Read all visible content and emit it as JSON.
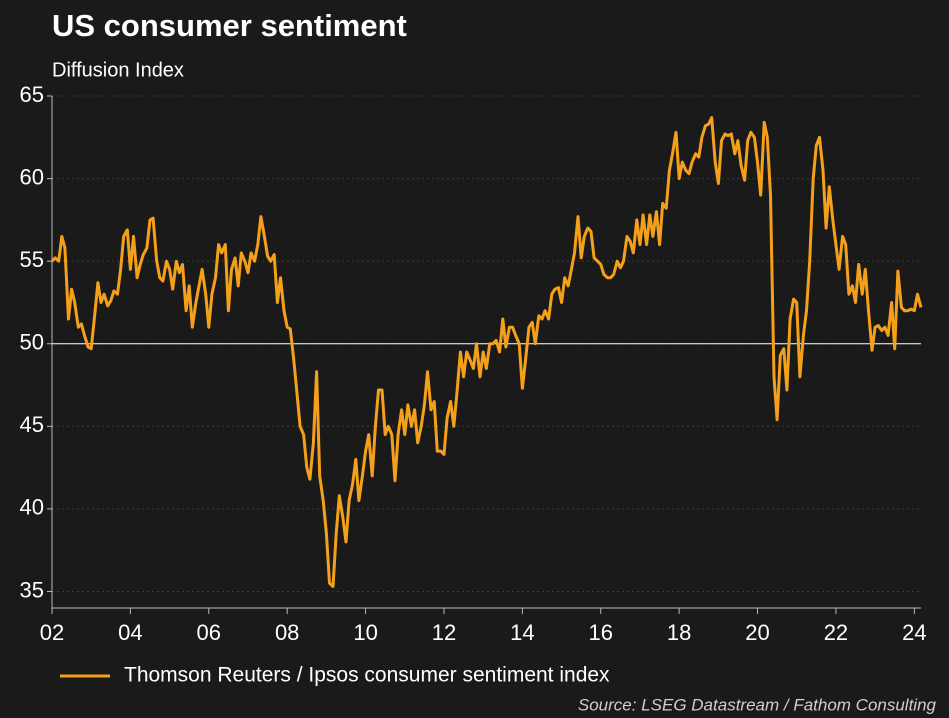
{
  "chart_data": {
    "type": "line",
    "title": "US consumer sentiment",
    "subtitle": "Diffusion Index",
    "source": "Source: LSEG Datastream / Fathom Consulting",
    "xlim": [
      2002,
      2024.17
    ],
    "xticks": [
      {
        "value": 2002,
        "label": "02"
      },
      {
        "value": 2004,
        "label": "04"
      },
      {
        "value": 2006,
        "label": "06"
      },
      {
        "value": 2008,
        "label": "08"
      },
      {
        "value": 2010,
        "label": "10"
      },
      {
        "value": 2012,
        "label": "12"
      },
      {
        "value": 2014,
        "label": "14"
      },
      {
        "value": 2016,
        "label": "16"
      },
      {
        "value": 2018,
        "label": "18"
      },
      {
        "value": 2020,
        "label": "20"
      },
      {
        "value": 2022,
        "label": "22"
      },
      {
        "value": 2024,
        "label": "24"
      }
    ],
    "ylim": [
      34,
      65
    ],
    "yticks": [
      35,
      40,
      45,
      50,
      55,
      60,
      65
    ],
    "grid": true,
    "hline": 50,
    "legend": "bottom-left",
    "x": [
      2002.0,
      2002.08,
      2002.17,
      2002.25,
      2002.33,
      2002.42,
      2002.5,
      2002.58,
      2002.67,
      2002.75,
      2002.83,
      2002.92,
      2003.0,
      2003.08,
      2003.17,
      2003.25,
      2003.33,
      2003.42,
      2003.5,
      2003.58,
      2003.67,
      2003.75,
      2003.83,
      2003.92,
      2004.0,
      2004.08,
      2004.17,
      2004.25,
      2004.33,
      2004.42,
      2004.5,
      2004.58,
      2004.67,
      2004.75,
      2004.83,
      2004.92,
      2005.0,
      2005.08,
      2005.17,
      2005.25,
      2005.33,
      2005.42,
      2005.5,
      2005.58,
      2005.67,
      2005.75,
      2005.83,
      2005.92,
      2006.0,
      2006.08,
      2006.17,
      2006.25,
      2006.33,
      2006.42,
      2006.5,
      2006.58,
      2006.67,
      2006.75,
      2006.83,
      2006.92,
      2007.0,
      2007.08,
      2007.17,
      2007.25,
      2007.33,
      2007.42,
      2007.5,
      2007.58,
      2007.67,
      2007.75,
      2007.83,
      2007.92,
      2008.0,
      2008.08,
      2008.17,
      2008.25,
      2008.33,
      2008.42,
      2008.5,
      2008.58,
      2008.67,
      2008.75,
      2008.83,
      2008.92,
      2009.0,
      2009.08,
      2009.17,
      2009.25,
      2009.33,
      2009.42,
      2009.5,
      2009.58,
      2009.67,
      2009.75,
      2009.83,
      2009.92,
      2010.0,
      2010.08,
      2010.17,
      2010.25,
      2010.33,
      2010.42,
      2010.5,
      2010.58,
      2010.67,
      2010.75,
      2010.83,
      2010.92,
      2011.0,
      2011.08,
      2011.17,
      2011.25,
      2011.33,
      2011.42,
      2011.5,
      2011.58,
      2011.67,
      2011.75,
      2011.83,
      2011.92,
      2012.0,
      2012.08,
      2012.17,
      2012.25,
      2012.33,
      2012.42,
      2012.5,
      2012.58,
      2012.67,
      2012.75,
      2012.83,
      2012.92,
      2013.0,
      2013.08,
      2013.17,
      2013.25,
      2013.33,
      2013.42,
      2013.5,
      2013.58,
      2013.67,
      2013.75,
      2013.83,
      2013.92,
      2014.0,
      2014.08,
      2014.17,
      2014.25,
      2014.33,
      2014.42,
      2014.5,
      2014.58,
      2014.67,
      2014.75,
      2014.83,
      2014.92,
      2015.0,
      2015.08,
      2015.17,
      2015.25,
      2015.33,
      2015.42,
      2015.5,
      2015.58,
      2015.67,
      2015.75,
      2015.83,
      2015.92,
      2016.0,
      2016.08,
      2016.17,
      2016.25,
      2016.33,
      2016.42,
      2016.5,
      2016.58,
      2016.67,
      2016.75,
      2016.83,
      2016.92,
      2017.0,
      2017.08,
      2017.17,
      2017.25,
      2017.33,
      2017.42,
      2017.5,
      2017.58,
      2017.67,
      2017.75,
      2017.83,
      2017.92,
      2018.0,
      2018.08,
      2018.17,
      2018.25,
      2018.33,
      2018.42,
      2018.5,
      2018.58,
      2018.67,
      2018.75,
      2018.83,
      2018.92,
      2019.0,
      2019.08,
      2019.17,
      2019.25,
      2019.33,
      2019.42,
      2019.5,
      2019.58,
      2019.67,
      2019.75,
      2019.83,
      2019.92,
      2020.0,
      2020.08,
      2020.17,
      2020.25,
      2020.33,
      2020.42,
      2020.5,
      2020.58,
      2020.67,
      2020.75,
      2020.83,
      2020.92,
      2021.0,
      2021.08,
      2021.17,
      2021.25,
      2021.33,
      2021.42,
      2021.5,
      2021.58,
      2021.67,
      2021.75,
      2021.83,
      2021.92,
      2022.0,
      2022.08,
      2022.17,
      2022.25,
      2022.33,
      2022.42,
      2022.5,
      2022.58,
      2022.67,
      2022.75,
      2022.83,
      2022.92,
      2023.0,
      2023.08,
      2023.17,
      2023.25,
      2023.33,
      2023.42,
      2023.5,
      2023.58,
      2023.67,
      2023.75,
      2023.83,
      2023.92,
      2024.0,
      2024.08,
      2024.17
    ],
    "series": [
      {
        "name": "Thomson Reuters / Ipsos consumer sentiment index",
        "color": "#f5a01a",
        "values": [
          55,
          55.2,
          55,
          56.5,
          55.8,
          51.5,
          53.3,
          52.5,
          51,
          51.2,
          50.5,
          49.8,
          49.7,
          51.5,
          53.7,
          52.5,
          53,
          52.3,
          52.6,
          53.2,
          53,
          54.5,
          56.5,
          56.9,
          54.5,
          56.5,
          54,
          54.8,
          55.4,
          55.8,
          57.5,
          57.6,
          55,
          54,
          53.8,
          55,
          54.5,
          53.3,
          55,
          54.3,
          54.8,
          52,
          53.5,
          51,
          52.5,
          53.5,
          54.5,
          53,
          51,
          53,
          54,
          56,
          55.5,
          56,
          52,
          54.5,
          55.2,
          53.5,
          55.5,
          55,
          54.3,
          55.5,
          55,
          56,
          57.7,
          56.5,
          55.3,
          55,
          55.4,
          52.5,
          54,
          52,
          51,
          50.9,
          49,
          47,
          45,
          44.5,
          42.5,
          41.8,
          44,
          48.3,
          42,
          40.5,
          38.5,
          35.5,
          35.3,
          38.5,
          40.8,
          39.5,
          38,
          40.5,
          41.5,
          43,
          40.5,
          42,
          43.5,
          44.5,
          42,
          45,
          47.2,
          47.2,
          44.5,
          45,
          44.5,
          41.7,
          44.5,
          46,
          44.5,
          46.3,
          45,
          46,
          44,
          45,
          46.3,
          48.3,
          46,
          46.5,
          43.5,
          43.5,
          43.3,
          45.5,
          46.5,
          45,
          47,
          49.5,
          48,
          49.5,
          49,
          48.5,
          50,
          48,
          49.5,
          48.5,
          50,
          50,
          50.2,
          49.5,
          51.5,
          49.8,
          51,
          51,
          50.5,
          50,
          47.3,
          49,
          51,
          51.3,
          50,
          51.7,
          51.5,
          52,
          51.5,
          53,
          53.3,
          53.4,
          52.5,
          54,
          53.5,
          54.5,
          55.5,
          57.7,
          55.2,
          56.5,
          57,
          56.8,
          55.2,
          55,
          54.8,
          54.2,
          54,
          54,
          54.2,
          55,
          54.6,
          55,
          56.5,
          56.2,
          55.5,
          57.5,
          56,
          57.8,
          56,
          57.8,
          56.5,
          58,
          56,
          58.5,
          58.2,
          60.5,
          61.5,
          62.8,
          60,
          61,
          60.5,
          60.3,
          61,
          61.5,
          61.3,
          62.5,
          63.2,
          63.3,
          63.7,
          61,
          59.7,
          62.3,
          62.7,
          62.6,
          62.7,
          61.5,
          62.3,
          60.8,
          59.9,
          62.3,
          62.8,
          62.5,
          61,
          59,
          63.4,
          62.5,
          59,
          48,
          45.4,
          49.3,
          49.7,
          47.2,
          51.5,
          52.7,
          52.5,
          48,
          50.5,
          52,
          55,
          60,
          62,
          62.5,
          60.5,
          57,
          59.5,
          57.5,
          56,
          54.5,
          56.5,
          56,
          53,
          53.5,
          52.5,
          54.8,
          53,
          54.5,
          52,
          49.6,
          51,
          51.1,
          50.8,
          51,
          50.5,
          52.5,
          49.7,
          54.4,
          52.2,
          52,
          52,
          52.1,
          52,
          53,
          52.2
        ]
      }
    ]
  }
}
